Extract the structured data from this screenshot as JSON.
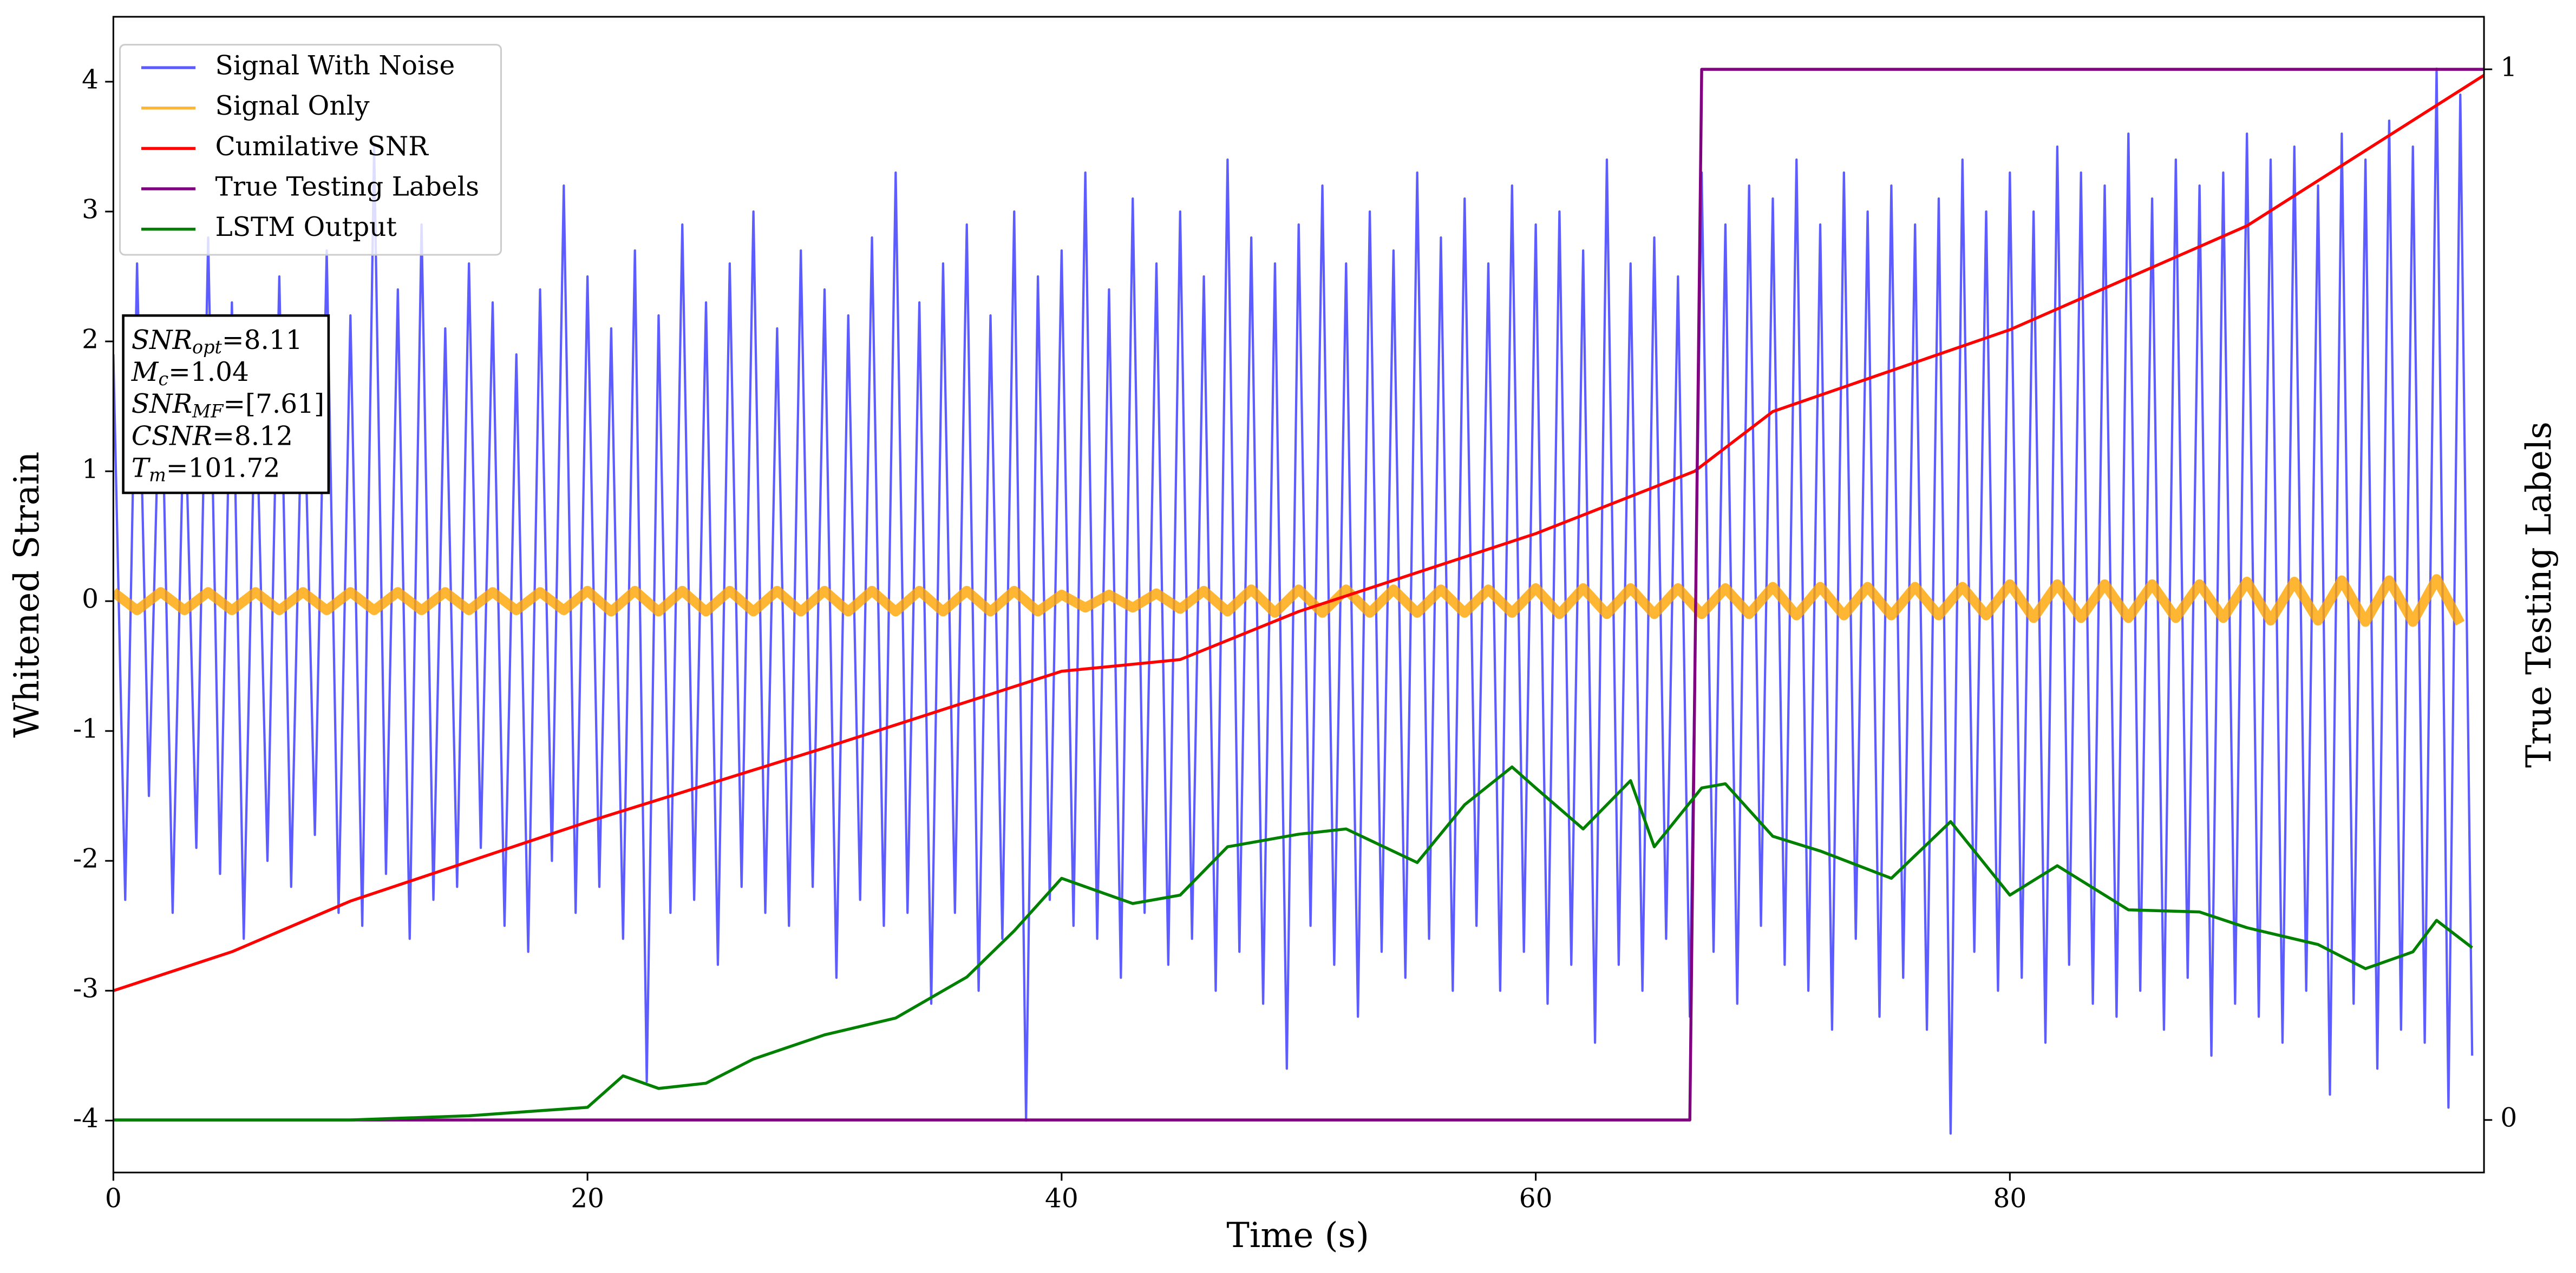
{
  "chart_data": {
    "type": "line",
    "xlabel": "Time (s)",
    "ylabel": "Whitened Strain",
    "y2label": "True Testing Labels",
    "xlim": [
      0,
      100
    ],
    "ylim": [
      -4.4,
      4.5
    ],
    "y2lim": [
      -0.05,
      1.05
    ],
    "xticks": [
      0,
      20,
      40,
      60,
      80
    ],
    "yticks": [
      -4,
      -3,
      -2,
      -1,
      0,
      1,
      2,
      3,
      4
    ],
    "y2ticks": [
      0,
      1
    ],
    "legend": "upper left",
    "annotation": [
      [
        "SNR",
        "opt",
        "=8.11"
      ],
      [
        "M",
        "c",
        "=1.04"
      ],
      [
        "SNR",
        "MF",
        "=[7.61]"
      ],
      [
        "CSNR",
        "",
        "=8.12"
      ],
      [
        "T",
        "m",
        "=101.72"
      ]
    ],
    "series": [
      {
        "name": "Signal With Noise",
        "color": "#3333ff",
        "x": [
          0,
          0.5,
          1,
          1.5,
          2,
          2.5,
          3,
          3.5,
          4,
          4.5,
          5,
          5.5,
          6,
          6.5,
          7,
          7.5,
          8,
          8.5,
          9,
          9.5,
          10,
          10.5,
          11,
          11.5,
          12,
          12.5,
          13,
          13.5,
          14,
          14.5,
          15,
          15.5,
          16,
          16.5,
          17,
          17.5,
          18,
          18.5,
          19,
          19.5,
          20,
          20.5,
          21,
          21.5,
          22,
          22.5,
          23,
          23.5,
          24,
          24.5,
          25,
          25.5,
          26,
          26.5,
          27,
          27.5,
          28,
          28.5,
          29,
          29.5,
          30,
          30.5,
          31,
          31.5,
          32,
          32.5,
          33,
          33.5,
          34,
          34.5,
          35,
          35.5,
          36,
          36.5,
          37,
          37.5,
          38,
          38.5,
          39,
          39.5,
          40,
          40.5,
          41,
          41.5,
          42,
          42.5,
          43,
          43.5,
          44,
          44.5,
          45,
          45.5,
          46,
          46.5,
          47,
          47.5,
          48,
          48.5,
          49,
          49.5,
          50,
          50.5,
          51,
          51.5,
          52,
          52.5,
          53,
          53.5,
          54,
          54.5,
          55,
          55.5,
          56,
          56.5,
          57,
          57.5,
          58,
          58.5,
          59,
          59.5,
          60,
          60.5,
          61,
          61.5,
          62,
          62.5,
          63,
          63.5,
          64,
          64.5,
          65,
          65.5,
          66,
          66.5,
          67,
          67.5,
          68,
          68.5,
          69,
          69.5,
          70,
          70.5,
          71,
          71.5,
          72,
          72.5,
          73,
          73.5,
          74,
          74.5,
          75,
          75.5,
          76,
          76.5,
          77,
          77.5,
          78,
          78.5,
          79,
          79.5,
          80,
          80.5,
          81,
          81.5,
          82,
          82.5,
          83,
          83.5,
          84,
          84.5,
          85,
          85.5,
          86,
          86.5,
          87,
          87.5,
          88,
          88.5,
          89,
          89.5,
          90,
          90.5,
          91,
          91.5,
          92,
          92.5,
          93,
          93.5,
          94,
          94.5,
          95,
          95.5,
          96,
          96.5,
          97,
          97.5,
          98,
          98.5,
          99,
          99.5
        ],
        "values": [
          1.9,
          -2.3,
          2.6,
          -1.5,
          2.1,
          -2.4,
          1.7,
          -1.9,
          2.8,
          -2.1,
          2.3,
          -2.6,
          1.8,
          -2.0,
          2.5,
          -2.2,
          2.0,
          -1.8,
          2.7,
          -2.4,
          2.2,
          -2.5,
          3.5,
          -2.1,
          2.4,
          -2.6,
          2.9,
          -2.3,
          2.1,
          -2.2,
          2.6,
          -1.9,
          2.3,
          -2.5,
          1.9,
          -2.7,
          2.4,
          -2.0,
          3.2,
          -2.4,
          2.5,
          -2.2,
          2.1,
          -2.6,
          2.7,
          -3.7,
          2.2,
          -2.4,
          2.9,
          -2.3,
          2.3,
          -2.8,
          2.6,
          -2.2,
          3.0,
          -2.4,
          2.1,
          -2.5,
          2.7,
          -2.2,
          2.4,
          -2.9,
          2.2,
          -2.3,
          2.8,
          -2.5,
          3.3,
          -2.4,
          2.3,
          -3.1,
          2.6,
          -2.4,
          2.9,
          -3.0,
          2.2,
          -2.6,
          3.0,
          -4.0,
          2.5,
          -2.3,
          2.7,
          -2.5,
          3.3,
          -2.6,
          2.4,
          -2.9,
          3.1,
          -2.4,
          2.6,
          -2.8,
          3.0,
          -2.6,
          2.5,
          -3.0,
          3.4,
          -2.7,
          2.8,
          -3.1,
          2.6,
          -3.6,
          2.9,
          -2.5,
          3.2,
          -2.8,
          2.6,
          -3.2,
          3.0,
          -2.7,
          2.7,
          -2.9,
          3.3,
          -2.6,
          2.8,
          -3.0,
          3.1,
          -2.5,
          2.6,
          -3.0,
          3.2,
          -2.7,
          2.9,
          -3.1,
          3.0,
          -2.8,
          2.7,
          -3.4,
          3.4,
          -2.8,
          2.6,
          -3.0,
          2.8,
          -2.6,
          2.5,
          -3.2,
          3.3,
          -2.7,
          2.9,
          -3.1,
          3.2,
          -2.5,
          3.1,
          -2.8,
          3.4,
          -3.0,
          2.9,
          -3.3,
          3.3,
          -2.6,
          3.0,
          -3.2,
          3.2,
          -2.9,
          2.9,
          -3.3,
          3.1,
          -4.1,
          3.4,
          -2.7,
          3.0,
          -3.0,
          3.3,
          -2.9,
          3.0,
          -3.4,
          3.5,
          -2.8,
          3.3,
          -3.1,
          3.2,
          -3.2,
          3.6,
          -3.0,
          3.1,
          -3.3,
          3.4,
          -2.9,
          3.2,
          -3.5,
          3.3,
          -3.1,
          3.6,
          -3.2,
          3.4,
          -3.4,
          3.5,
          -3.0,
          3.2,
          -3.8,
          3.6,
          -3.1,
          3.4,
          -3.6,
          3.7,
          -3.3,
          3.5,
          -3.4,
          4.1,
          -3.9,
          3.9,
          -3.5
        ]
      },
      {
        "name": "Signal Only",
        "color": "#ffa500",
        "x": [
          0,
          1,
          2,
          3,
          4,
          5,
          6,
          7,
          8,
          9,
          10,
          11,
          12,
          13,
          14,
          15,
          16,
          17,
          18,
          19,
          20,
          21,
          22,
          23,
          24,
          25,
          26,
          27,
          28,
          29,
          30,
          31,
          32,
          33,
          34,
          35,
          36,
          37,
          38,
          39,
          40,
          41,
          42,
          43,
          44,
          45,
          46,
          47,
          48,
          49,
          50,
          51,
          52,
          53,
          54,
          55,
          56,
          57,
          58,
          59,
          60,
          61,
          62,
          63,
          64,
          65,
          66,
          67,
          68,
          69,
          70,
          71,
          72,
          73,
          74,
          75,
          76,
          77,
          78,
          79,
          80,
          81,
          82,
          83,
          84,
          85,
          86,
          87,
          88,
          89,
          90,
          91,
          92,
          93,
          94,
          95,
          96,
          97,
          98,
          99
        ],
        "values": [
          0.07,
          -0.07,
          0.07,
          -0.07,
          0.07,
          -0.07,
          0.07,
          -0.07,
          0.07,
          -0.07,
          0.07,
          -0.07,
          0.07,
          -0.07,
          0.07,
          -0.07,
          0.07,
          -0.07,
          0.07,
          -0.07,
          0.08,
          -0.08,
          0.08,
          -0.08,
          0.08,
          -0.08,
          0.08,
          -0.08,
          0.08,
          -0.08,
          0.08,
          -0.08,
          0.08,
          -0.08,
          0.08,
          -0.08,
          0.08,
          -0.08,
          0.08,
          -0.08,
          0.05,
          -0.05,
          0.05,
          -0.05,
          0.06,
          -0.06,
          0.08,
          -0.08,
          0.09,
          -0.09,
          0.09,
          -0.09,
          0.09,
          -0.09,
          0.09,
          -0.09,
          0.09,
          -0.09,
          0.09,
          -0.09,
          0.1,
          -0.1,
          0.1,
          -0.1,
          0.1,
          -0.1,
          0.1,
          -0.1,
          0.1,
          -0.1,
          0.11,
          -0.11,
          0.11,
          -0.11,
          0.11,
          -0.11,
          0.11,
          -0.11,
          0.11,
          -0.11,
          0.13,
          -0.13,
          0.13,
          -0.13,
          0.13,
          -0.13,
          0.13,
          -0.13,
          0.13,
          -0.13,
          0.15,
          -0.15,
          0.15,
          -0.15,
          0.16,
          -0.16,
          0.16,
          -0.16,
          0.17,
          -0.17
        ]
      },
      {
        "name": "Cumilative SNR",
        "color": "#ff0000",
        "x": [
          0,
          5,
          10,
          20,
          30,
          40,
          45,
          50,
          60,
          66.7,
          70,
          80,
          90,
          100
        ],
        "values": [
          -3,
          -2.7,
          -2.31,
          -1.7,
          -1.13,
          -0.54,
          -0.45,
          -0.08,
          0.52,
          1.0,
          1.46,
          2.09,
          2.89,
          4.05
        ]
      },
      {
        "name": "True Testing Labels",
        "color": "#800080",
        "axis": "y2",
        "x": [
          0,
          66.5,
          67,
          100
        ],
        "values": [
          0,
          0,
          1,
          1
        ]
      },
      {
        "name": "LSTM Output",
        "color": "#008000",
        "axis": "y2",
        "x": [
          0,
          10,
          15,
          20,
          21.5,
          23,
          25,
          27,
          30,
          33,
          36,
          38,
          40,
          43,
          45,
          47,
          50,
          52,
          55,
          57,
          59,
          60,
          62,
          64,
          65,
          67,
          68,
          70,
          72,
          75,
          77.5,
          80,
          82,
          85,
          88,
          90,
          93,
          95,
          97,
          98,
          99.5
        ],
        "values": [
          0,
          0,
          0.004,
          0.012,
          0.042,
          0.03,
          0.035,
          0.058,
          0.081,
          0.097,
          0.136,
          0.18,
          0.23,
          0.206,
          0.214,
          0.26,
          0.272,
          0.277,
          0.245,
          0.3,
          0.336,
          0.316,
          0.277,
          0.323,
          0.26,
          0.316,
          0.32,
          0.27,
          0.256,
          0.23,
          0.284,
          0.214,
          0.242,
          0.2,
          0.198,
          0.183,
          0.167,
          0.144,
          0.16,
          0.19,
          0.164
        ]
      }
    ]
  }
}
